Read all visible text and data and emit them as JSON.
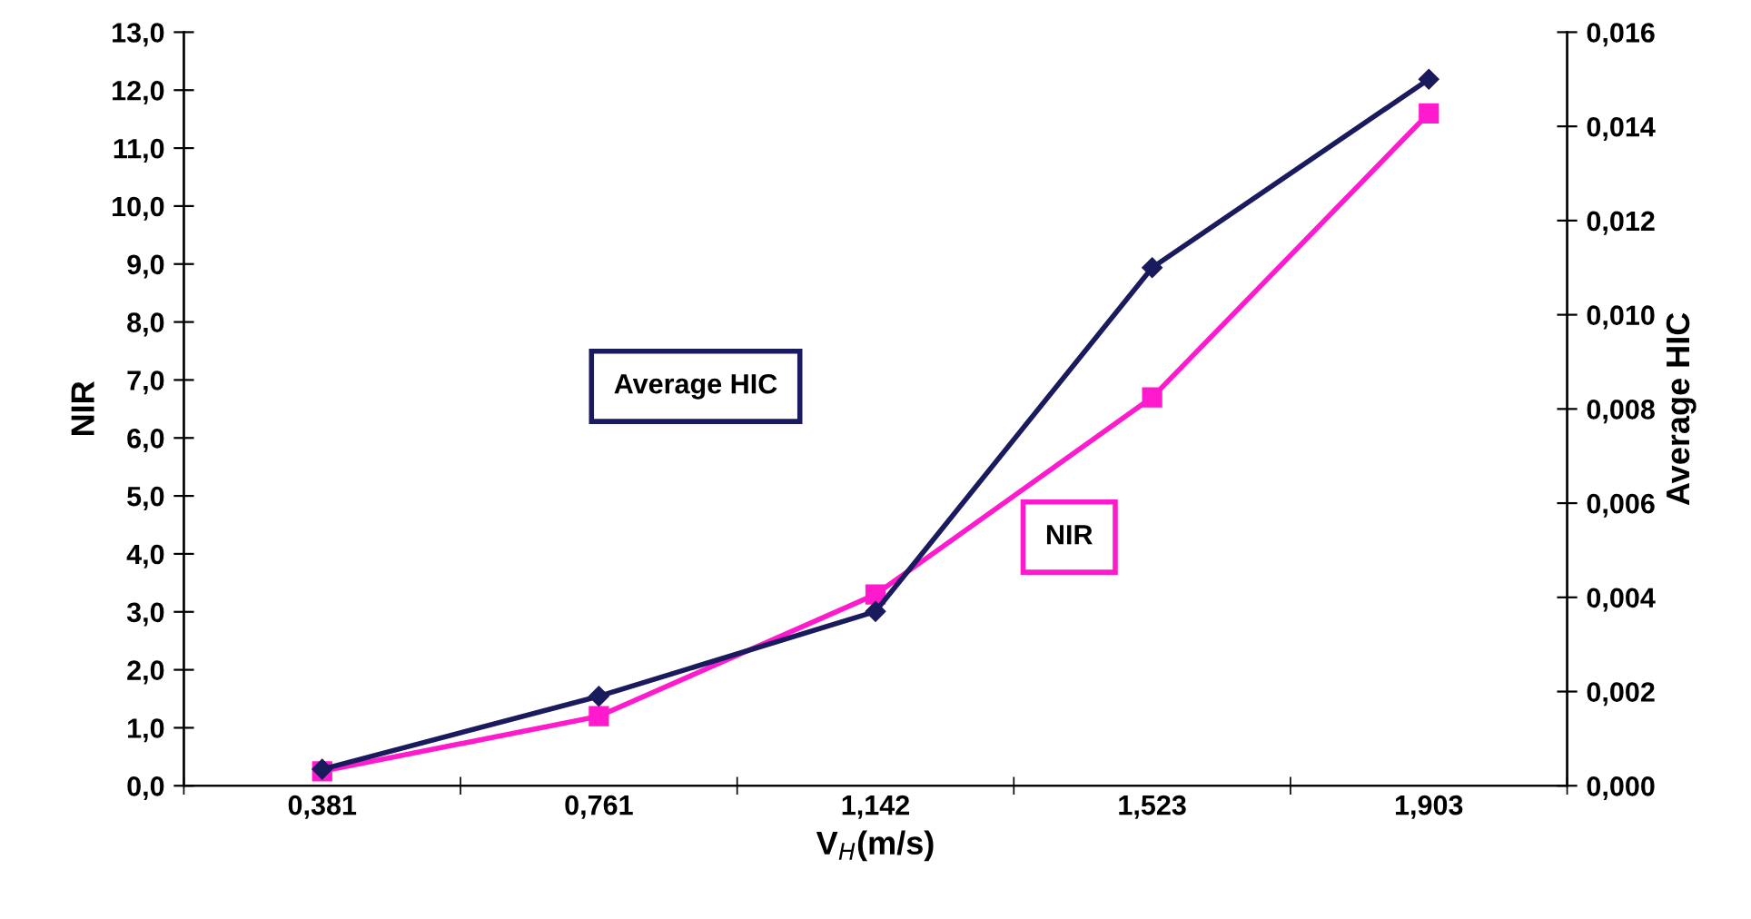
{
  "chart_data": {
    "type": "line",
    "xlabel": "V$_{H}$(m/s)",
    "ylabel": "NIR",
    "y2label": "Average HIC",
    "categories": [
      "0,381",
      "0,761",
      "1,142",
      "1,523",
      "1,903"
    ],
    "series": [
      {
        "name": "Average HIC",
        "color": "#1a1a5e",
        "axis": "y2",
        "marker": "diamond",
        "values": [
          0.00035,
          0.0019,
          0.0037,
          0.011,
          0.015
        ]
      },
      {
        "name": "NIR",
        "color": "#ff1acd",
        "axis": "y",
        "marker": "square",
        "values": [
          0.25,
          1.2,
          3.3,
          6.7,
          11.6
        ]
      }
    ],
    "ylim": [
      0,
      13
    ],
    "yticks": [
      {
        "value": 0,
        "label": "0,0"
      },
      {
        "value": 1,
        "label": "1,0"
      },
      {
        "value": 2,
        "label": "2,0"
      },
      {
        "value": 3,
        "label": "3,0"
      },
      {
        "value": 4,
        "label": "4,0"
      },
      {
        "value": 5,
        "label": "5,0"
      },
      {
        "value": 6,
        "label": "6,0"
      },
      {
        "value": 7,
        "label": "7,0"
      },
      {
        "value": 8,
        "label": "8,0"
      },
      {
        "value": 9,
        "label": "9,0"
      },
      {
        "value": 10,
        "label": "10,0"
      },
      {
        "value": 11,
        "label": "11,0"
      },
      {
        "value": 12,
        "label": "12,0"
      },
      {
        "value": 13,
        "label": "13,0"
      }
    ],
    "y2lim": [
      0,
      0.016
    ],
    "y2ticks": [
      {
        "value": 0,
        "label": "0,000"
      },
      {
        "value": 0.002,
        "label": "0,002"
      },
      {
        "value": 0.004,
        "label": "0,004"
      },
      {
        "value": 0.006,
        "label": "0,006"
      },
      {
        "value": 0.008,
        "label": "0,008"
      },
      {
        "value": 0.01,
        "label": "0,010"
      },
      {
        "value": 0.012,
        "label": "0,012"
      },
      {
        "value": 0.014,
        "label": "0,014"
      },
      {
        "value": 0.016,
        "label": "0,016"
      }
    ],
    "grid": false,
    "legend": false,
    "line_style": "solid"
  }
}
